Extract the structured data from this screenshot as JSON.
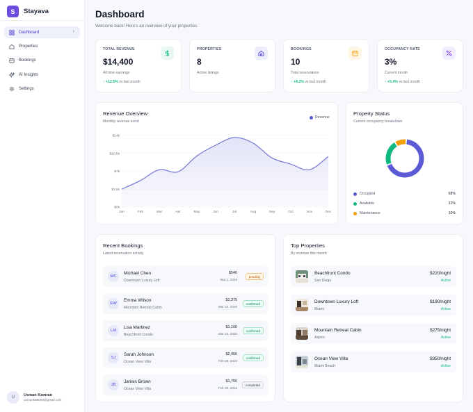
{
  "brand": {
    "logo_letter": "S",
    "name": "Stayava"
  },
  "sidebar": {
    "items": [
      {
        "label": "Dashboard",
        "active": true
      },
      {
        "label": "Properties"
      },
      {
        "label": "Bookings"
      },
      {
        "label": "AI Insights"
      },
      {
        "label": "Settings"
      }
    ],
    "chevron": "›"
  },
  "user": {
    "initial": "U",
    "name": "Usman Kamran",
    "email": "usmank88000@gmail.com"
  },
  "header": {
    "title": "Dashboard",
    "subtitle": "Welcome back! Here's an overview of your properties."
  },
  "stats": [
    {
      "label": "TOTAL REVENUE",
      "value": "$14,400",
      "desc": "All time earnings",
      "arrow": "↑",
      "change": "+12.5%",
      "vs": "vs last month",
      "icon": "dollar-icon",
      "icon_color": "#10b981",
      "icon_bg": "#e9f8f1"
    },
    {
      "label": "PROPERTIES",
      "value": "8",
      "desc": "Active listings",
      "icon": "home-icon",
      "icon_color": "#4f46e5",
      "icon_bg": "#eceefb"
    },
    {
      "label": "BOOKINGS",
      "value": "10",
      "desc": "Total reservations",
      "arrow": "↑",
      "change": "+8.2%",
      "vs": "vs last month",
      "icon": "calendar-icon",
      "icon_color": "#f59e0b",
      "icon_bg": "#fef5e4"
    },
    {
      "label": "OCCUPANCY RATE",
      "value": "3%",
      "desc": "Current month",
      "arrow": "↑",
      "change": "+5.4%",
      "vs": "vs last month",
      "icon": "percent-icon",
      "icon_color": "#7c3aed",
      "icon_bg": "#f2edfd"
    }
  ],
  "revenue": {
    "title": "Revenue Overview",
    "subtitle": "Monthly revenue trend",
    "legend": "Revenue"
  },
  "status": {
    "title": "Property Status",
    "subtitle": "Current occupancy breakdown",
    "items": [
      {
        "label": "Occupied",
        "value": "68%",
        "color": "#5b5bd6"
      },
      {
        "label": "Available",
        "value": "22%",
        "color": "#10b981"
      },
      {
        "label": "Maintenance",
        "value": "10%",
        "color": "#f59e0b"
      }
    ]
  },
  "chart_data": [
    {
      "type": "area",
      "categories": [
        "Jan",
        "Feb",
        "Mar",
        "Apr",
        "May",
        "Jun",
        "Jul",
        "Aug",
        "Sep",
        "Oct",
        "Nov",
        "Dec"
      ],
      "series": [
        {
          "name": "Revenue",
          "values": [
            3500,
            5200,
            7300,
            6900,
            10000,
            12100,
            13600,
            12500,
            9600,
            8400,
            7300,
            9900
          ]
        }
      ],
      "yticks": [
        "$0k",
        "$3.5k",
        "$7k",
        "$10.5k",
        "$14k"
      ],
      "ylim": [
        0,
        14000
      ],
      "color": "#7c7fd8",
      "grid": true,
      "legend": "top-right"
    },
    {
      "type": "pie",
      "categories": [
        "Occupied",
        "Available",
        "Maintenance"
      ],
      "values": [
        68,
        22,
        10
      ],
      "colors": [
        "#5b5bd6",
        "#10b981",
        "#f59e0b"
      ]
    }
  ],
  "bookings": {
    "title": "Recent Bookings",
    "subtitle": "Latest reservation activity",
    "rows": [
      {
        "initials": "MC",
        "name": "Michael Chen",
        "place": "Downtown Luxury Loft",
        "amount": "$540",
        "date": "Mar 1, 2026",
        "status": "pending"
      },
      {
        "initials": "EW",
        "name": "Emma Wilson",
        "place": "Mountain Retreat Cabin",
        "amount": "$1,375",
        "date": "Mar 10, 2026",
        "status": "confirmed"
      },
      {
        "initials": "LM",
        "name": "Lisa Martinez",
        "place": "Beachfront Condo",
        "amount": "$1,100",
        "date": "Mar 15, 2026",
        "status": "confirmed"
      },
      {
        "initials": "SJ",
        "name": "Sarah Johnson",
        "place": "Ocean View Villa",
        "amount": "$2,450",
        "date": "Feb 28, 2026",
        "status": "confirmed"
      },
      {
        "initials": "JB",
        "name": "James Brown",
        "place": "Ocean View Villa",
        "amount": "$1,750",
        "date": "Feb 20, 2026",
        "status": "completed"
      }
    ]
  },
  "properties": {
    "title": "Top Properties",
    "subtitle": "By revenue this month",
    "rows": [
      {
        "name": "Beachfront Condo",
        "location": "San Diego",
        "price": "$220/night",
        "status": "Active"
      },
      {
        "name": "Downtown Luxury Loft",
        "location": "Miami",
        "price": "$180/night",
        "status": "Active"
      },
      {
        "name": "Mountain Retreat Cabin",
        "location": "Aspen",
        "price": "$275/night",
        "status": "Active"
      },
      {
        "name": "Ocean View Villa",
        "location": "Miami Beach",
        "price": "$350/night",
        "status": "Active"
      }
    ]
  }
}
